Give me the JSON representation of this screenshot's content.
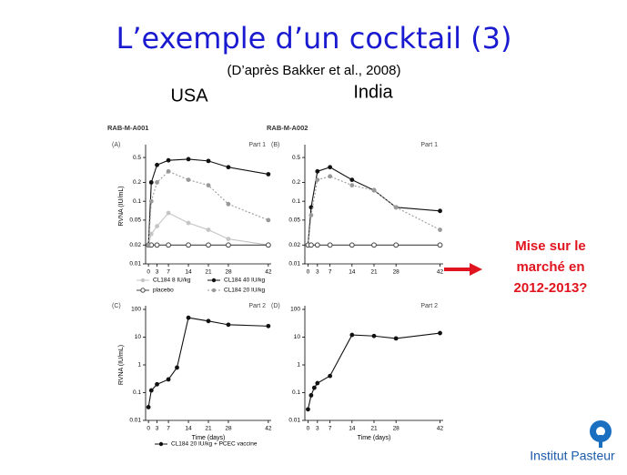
{
  "slide": {
    "title": "L’exemple d’un cocktail (3)",
    "subtitle": "(D’après Bakker et al., 2008)",
    "labels": [
      "USA",
      "India"
    ],
    "note": [
      "Mise sur le",
      "marché en",
      "2012-2013?"
    ],
    "logo": "Institut Pasteur"
  },
  "chart_data": [
    {
      "type": "line",
      "header": "RAB-M-A001",
      "panel": "(A)",
      "part": "Part 1",
      "y_label": "RVNA (IU/mL)",
      "log_y": true,
      "x": [
        0,
        1,
        3,
        7,
        14,
        21,
        28,
        42
      ],
      "xlim": [
        -1,
        43
      ],
      "xticks": [
        0,
        3,
        7,
        14,
        21,
        28,
        42
      ],
      "ylim": [
        0.01,
        0.7
      ],
      "yticks": [
        0.01,
        0.02,
        0.05,
        0.1,
        0.2,
        0.5
      ],
      "series": [
        {
          "name": "CL184  8 IU/kg",
          "color": "#c4c4c4",
          "marker": "filled",
          "dash": "solid",
          "values": [
            0.02,
            0.03,
            0.04,
            0.065,
            0.045,
            0.035,
            0.025,
            0.02
          ]
        },
        {
          "name": "CL184 40 IU/kg",
          "color": "#111111",
          "marker": "filled",
          "dash": "solid",
          "values": [
            0.02,
            0.2,
            0.38,
            0.45,
            0.47,
            0.44,
            0.35,
            0.27
          ]
        },
        {
          "name": "placebo",
          "color": "#444444",
          "marker": "open",
          "dash": "solid",
          "values": [
            0.02,
            0.02,
            0.02,
            0.02,
            0.02,
            0.02,
            0.02,
            0.02
          ]
        },
        {
          "name": "CL184 20 IU/kg",
          "color": "#999999",
          "marker": "filled",
          "dash": "dotted",
          "values": [
            0.02,
            0.1,
            0.2,
            0.3,
            0.22,
            0.18,
            0.09,
            0.05
          ]
        }
      ]
    },
    {
      "type": "line",
      "header": "RAB-M-A002",
      "panel": "(B)",
      "part": "Part 1",
      "log_y": true,
      "x": [
        0,
        1,
        3,
        7,
        14,
        21,
        28,
        42
      ],
      "xlim": [
        -1,
        43
      ],
      "xticks": [
        0,
        3,
        7,
        14,
        21,
        28,
        42
      ],
      "ylim": [
        0.01,
        0.7
      ],
      "yticks": [
        0.01,
        0.02,
        0.05,
        0.1,
        0.2,
        0.5
      ],
      "series": [
        {
          "color": "#111111",
          "marker": "filled",
          "dash": "solid",
          "values": [
            0.02,
            0.08,
            0.3,
            0.35,
            0.22,
            0.15,
            0.08,
            0.07
          ]
        },
        {
          "color": "#999999",
          "marker": "filled",
          "dash": "dotted",
          "values": [
            0.02,
            0.06,
            0.22,
            0.25,
            0.18,
            0.15,
            0.08,
            0.035
          ]
        },
        {
          "color": "#444444",
          "marker": "open",
          "dash": "solid",
          "values": [
            0.02,
            0.02,
            0.02,
            0.02,
            0.02,
            0.02,
            0.02,
            0.02
          ]
        }
      ]
    },
    {
      "type": "line",
      "panel": "(C)",
      "part": "Part 2",
      "y_label": "RVNA (IU/mL)",
      "x_label": "Time (days)",
      "log_y": true,
      "x": [
        0,
        1,
        3,
        7,
        10,
        14,
        21,
        28,
        42
      ],
      "xlim": [
        -1,
        43
      ],
      "xticks": [
        0,
        3,
        7,
        14,
        21,
        28,
        42
      ],
      "ylim": [
        0.01,
        100
      ],
      "yticks": [
        0.01,
        0.1,
        1,
        10,
        100
      ],
      "series": [
        {
          "name": "CL184 20 IU/kg + PCEC vaccine",
          "color": "#111111",
          "marker": "filled",
          "dash": "solid",
          "values": [
            0.03,
            0.12,
            0.2,
            0.3,
            0.8,
            50,
            38,
            28,
            25
          ]
        }
      ]
    },
    {
      "type": "line",
      "panel": "(D)",
      "part": "Part 2",
      "x_label": "Time (days)",
      "log_y": true,
      "x": [
        0,
        1,
        2,
        3,
        7,
        14,
        21,
        28,
        42
      ],
      "xlim": [
        -1,
        43
      ],
      "xticks": [
        0,
        3,
        7,
        14,
        21,
        28,
        42
      ],
      "ylim": [
        0.01,
        100
      ],
      "yticks": [
        0.01,
        0.1,
        1,
        10,
        100
      ],
      "series": [
        {
          "color": "#111111",
          "marker": "filled",
          "dash": "solid",
          "values": [
            0.025,
            0.08,
            0.15,
            0.22,
            0.4,
            12,
            11,
            9,
            14
          ]
        }
      ]
    }
  ]
}
